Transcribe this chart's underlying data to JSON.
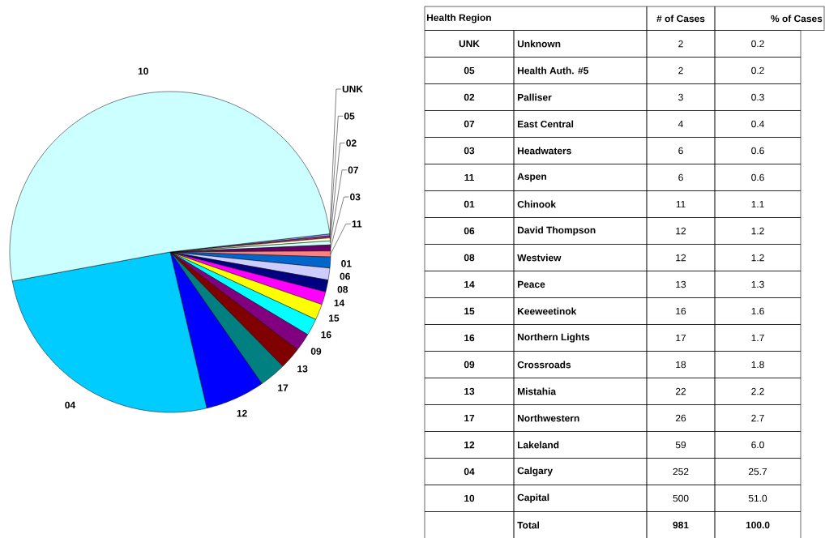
{
  "chart_data": [
    {
      "type": "pie",
      "categories": [
        "UNK",
        "05",
        "02",
        "07",
        "03",
        "11",
        "01",
        "06",
        "08",
        "14",
        "15",
        "16",
        "09",
        "13",
        "17",
        "12",
        "04",
        "10"
      ],
      "values": [
        0.2,
        0.2,
        0.3,
        0.4,
        0.6,
        0.6,
        1.1,
        1.2,
        1.2,
        1.3,
        1.6,
        1.7,
        1.8,
        2.2,
        2.7,
        6.0,
        25.7,
        51.0
      ],
      "colors": [
        "#9999ff",
        "#993366",
        "#ffffcc",
        "#ccffff",
        "#660066",
        "#ff8080",
        "#0066cc",
        "#ccccff",
        "#000080",
        "#ff00ff",
        "#ffff00",
        "#00ffff",
        "#800080",
        "#800000",
        "#008080",
        "#0000ff",
        "#00ccff",
        "#ccffff"
      ]
    },
    {
      "type": "other",
      "annotations": [
        "Health Region",
        "# of Cases",
        "% of Cases",
        "UNK",
        "Unknown",
        "2",
        "0.2",
        "05",
        "Health Auth. #5",
        "2",
        "0.2",
        "02",
        "Palliser",
        "3",
        "0.3",
        "07",
        "East Central",
        "4",
        "0.4",
        "03",
        "Headwaters",
        "6",
        "0.6",
        "11",
        "Aspen",
        "6",
        "0.6",
        "01",
        "Chinook",
        "11",
        "1.1",
        "06",
        "David Thompson",
        "12",
        "1.2",
        "08",
        "Westview",
        "12",
        "1.2",
        "14",
        "Peace",
        "13",
        "1.3",
        "15",
        "Keeweetinok",
        "16",
        "1.6",
        "16",
        "Northern Lights",
        "17",
        "1.7",
        "09",
        "Crossroads",
        "18",
        "1.8",
        "13",
        "Mistahia",
        "22",
        "2.2",
        "17",
        "Northwestern",
        "26",
        "2.7",
        "12",
        "Lakeland",
        "59",
        "6.0",
        "04",
        "Calgary",
        "252",
        "25.7",
        "10",
        "Capital",
        "500",
        "51.0",
        "Total",
        "981",
        "100.0"
      ]
    }
  ]
}
